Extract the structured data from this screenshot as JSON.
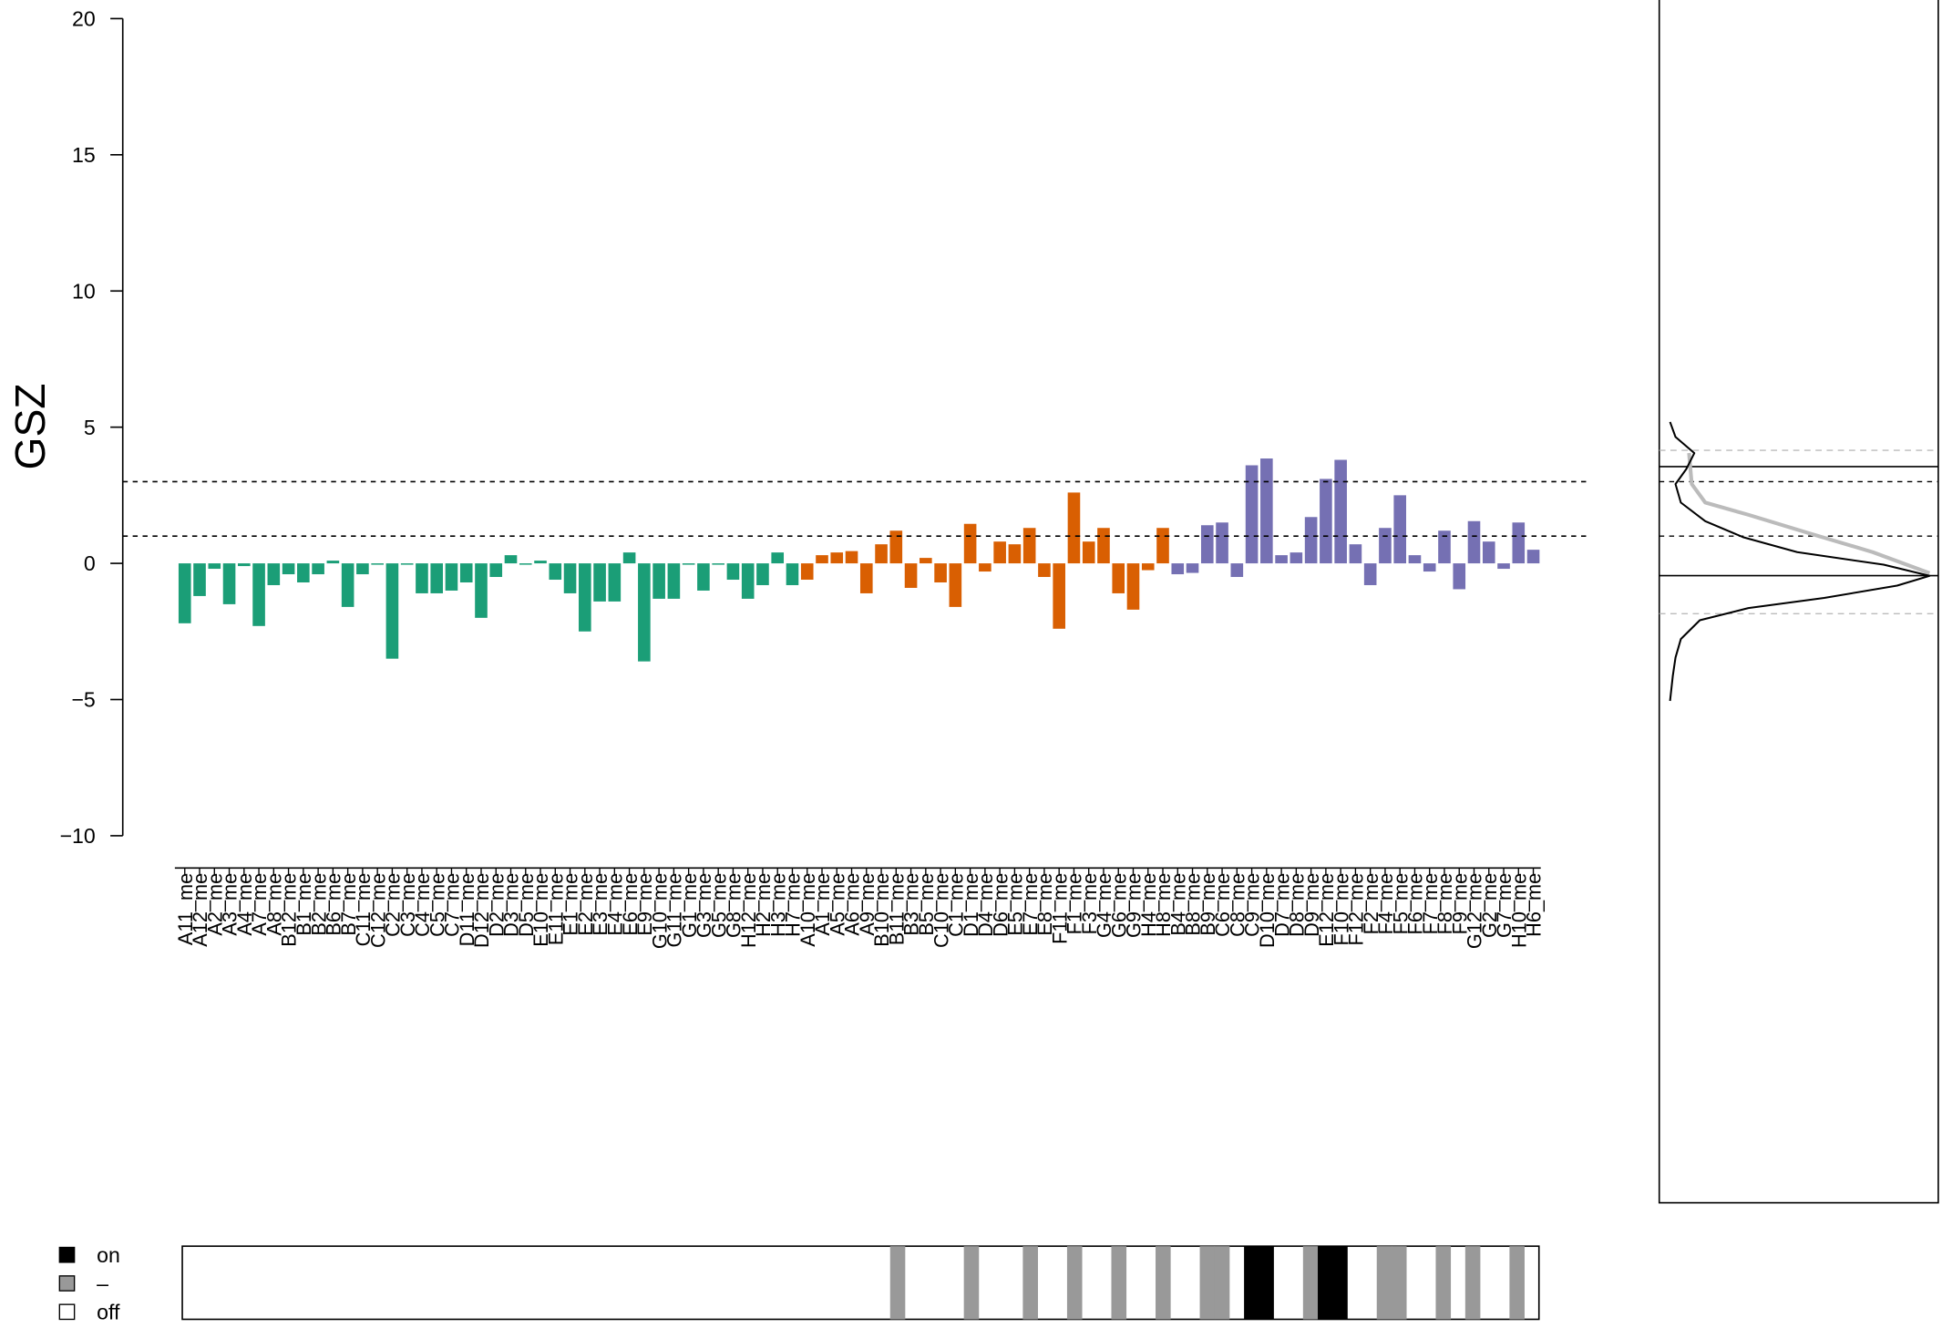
{
  "chart_data": {
    "type": "bar",
    "y_label": "GSZ",
    "ylim": [
      -10,
      20
    ],
    "yticks": [
      {
        "value": -10,
        "label": "−10"
      },
      {
        "value": -5,
        "label": "−5"
      },
      0,
      5,
      10,
      15,
      20
    ],
    "thresholds": [
      1,
      3
    ],
    "series": [
      {
        "color": "#1b9e77",
        "categories": [
          "A11_me",
          "A12_me",
          "A2_me",
          "A3_me",
          "A4_me",
          "A7_me",
          "A8_me",
          "B12_me",
          "B1_me",
          "B2_me",
          "B6_me",
          "B7_me",
          "C11_me",
          "C12_me",
          "C2_me",
          "C3_me",
          "C4_me",
          "C5_me",
          "C7_me",
          "D11_me",
          "D12_me",
          "D2_me",
          "D3_me",
          "D5_me",
          "E10_me",
          "E11_me",
          "E1_me",
          "E2_me",
          "E3_me",
          "E4_me",
          "E6_me",
          "E9_me",
          "G10_me",
          "G11_me",
          "G1_me",
          "G3_me",
          "G5_me",
          "G8_me",
          "H12_me",
          "H2_me",
          "H3_me",
          "H7_me"
        ],
        "values": [
          -2.2,
          -1.2,
          -0.2,
          -1.5,
          -0.1,
          -2.3,
          -0.8,
          -0.4,
          -0.7,
          -0.4,
          0.1,
          -1.6,
          -0.4,
          -0.05,
          -3.5,
          -0.05,
          -1.1,
          -1.1,
          -1.0,
          -0.7,
          -2.0,
          -0.5,
          0.3,
          -0.05,
          0.1,
          -0.6,
          -1.1,
          -2.5,
          -1.4,
          -1.4,
          0.4,
          -3.6,
          -1.3,
          -1.3,
          -0.05,
          -1.0,
          -0.05,
          -0.6,
          -1.3,
          -0.8,
          0.4,
          -0.8
        ]
      },
      {
        "color": "#d95f02",
        "categories": [
          "A10_me",
          "A1_me",
          "A5_me",
          "A6_me",
          "A9_me",
          "B10_me",
          "B11_me",
          "B3_me",
          "B5_me",
          "C10_me",
          "C1_me",
          "D1_me",
          "D4_me",
          "D6_me",
          "E5_me",
          "E7_me",
          "E8_me",
          "F11_me",
          "F1_me",
          "F3_me",
          "G4_me",
          "G6_me",
          "G9_me",
          "H4_me",
          "H8_me"
        ],
        "values": [
          -0.6,
          0.3,
          0.4,
          0.45,
          -1.1,
          0.7,
          1.2,
          -0.9,
          0.2,
          -0.7,
          -1.6,
          1.45,
          -0.3,
          0.8,
          0.7,
          1.3,
          -0.5,
          -2.4,
          2.6,
          0.8,
          1.3,
          -1.1,
          -1.7,
          -0.25,
          1.3
        ]
      },
      {
        "color": "#7570b3",
        "categories": [
          "B4_me",
          "B8_me",
          "B9_me",
          "C6_me",
          "C8_me",
          "C9_me",
          "D10_me",
          "D7_me",
          "D8_me",
          "D9_me",
          "E12_me",
          "F10_me",
          "F12_me",
          "F2_me",
          "F4_me",
          "F5_me",
          "F6_me",
          "F7_me",
          "F8_me",
          "F9_me",
          "G12_me",
          "G2_me",
          "G7_me",
          "H10_me",
          "H6_me"
        ],
        "values": [
          -0.4,
          -0.35,
          1.4,
          1.5,
          -0.5,
          3.6,
          3.85,
          0.3,
          0.4,
          1.7,
          3.1,
          3.8,
          0.7,
          -0.8,
          1.3,
          2.5,
          0.3,
          -0.3,
          1.2,
          -0.95,
          1.55,
          0.8,
          -0.2,
          1.5,
          0.5
        ]
      }
    ],
    "status_legend": [
      {
        "label": "on",
        "color": "#000000"
      },
      {
        "label": "–",
        "color": "#999999"
      },
      {
        "label": "off",
        "color": "#ffffff"
      }
    ],
    "status": [
      2,
      2,
      2,
      2,
      2,
      2,
      2,
      2,
      2,
      2,
      2,
      2,
      2,
      2,
      2,
      2,
      2,
      2,
      2,
      2,
      2,
      2,
      2,
      2,
      2,
      2,
      2,
      2,
      2,
      2,
      2,
      2,
      2,
      2,
      2,
      2,
      2,
      2,
      2,
      2,
      2,
      2,
      2,
      2,
      2,
      2,
      2,
      2,
      1,
      2,
      2,
      2,
      2,
      1,
      2,
      2,
      2,
      1,
      2,
      2,
      1,
      2,
      2,
      1,
      2,
      2,
      1,
      2,
      2,
      1,
      1,
      2,
      0,
      0,
      2,
      2,
      1,
      0,
      0,
      2,
      2,
      1,
      1,
      2,
      2,
      1,
      2,
      1,
      2,
      2,
      1,
      2
    ],
    "side_panel": {
      "xlim": [
        0,
        1
      ],
      "density_y": [
        5.19,
        4.64,
        4.05,
        3.46,
        2.91,
        2.23,
        1.55,
        0.96,
        0.41,
        -0.05,
        -0.46,
        -0.82,
        -1.27,
        -1.64,
        -2.09,
        -2.78,
        -3.46,
        -4.14,
        -5.05
      ],
      "density": [
        0.04,
        0.06,
        0.13,
        0.1,
        0.06,
        0.08,
        0.17,
        0.31,
        0.51,
        0.83,
        1.0,
        0.88,
        0.61,
        0.33,
        0.15,
        0.08,
        0.06,
        0.05,
        0.04
      ],
      "gray_y": [
        4.05,
        2.91,
        2.23,
        1.78,
        1.09,
        0.41,
        -0.36
      ],
      "gray_density": [
        0.11,
        0.12,
        0.17,
        0.33,
        0.56,
        0.79,
        1.0
      ],
      "solid_lines": [
        3.55,
        -0.45
      ],
      "gray_dashed_lines": [
        4.15,
        -1.85
      ]
    }
  }
}
